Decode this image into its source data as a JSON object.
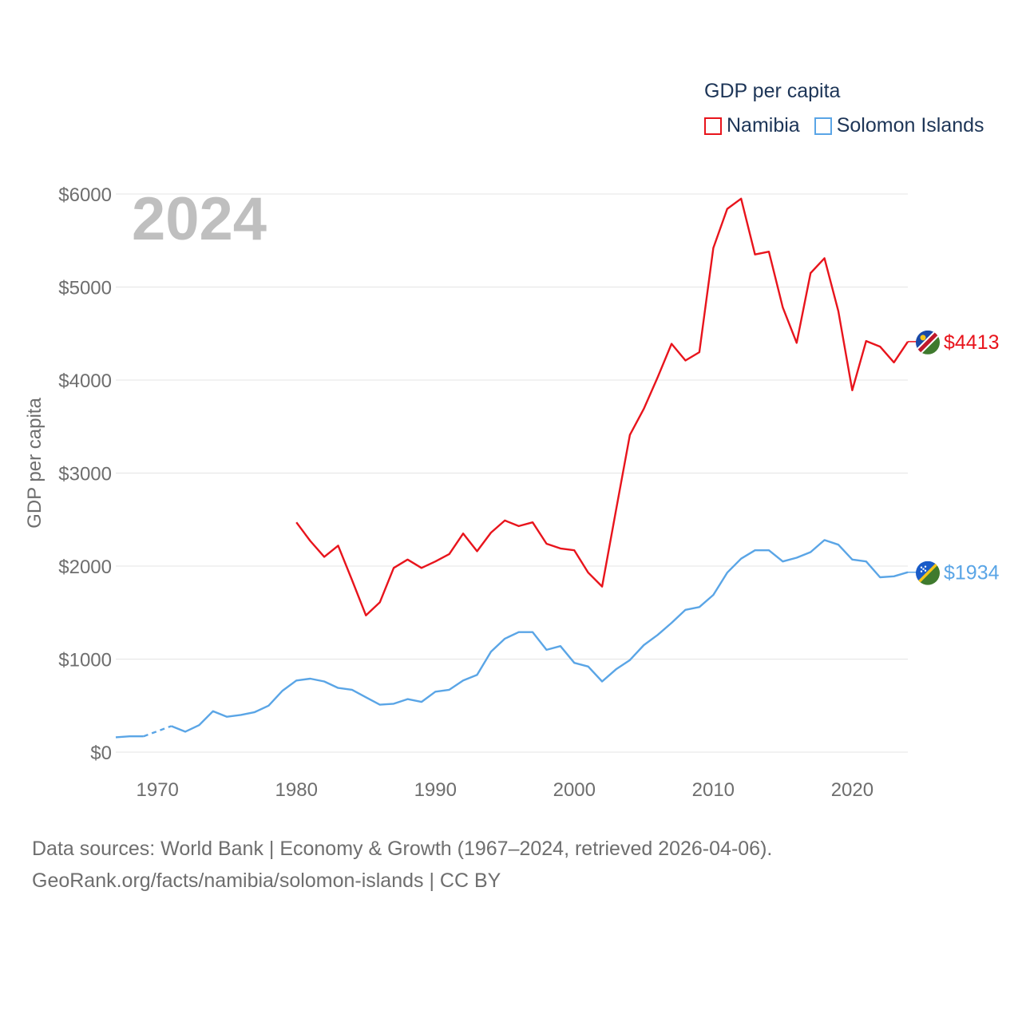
{
  "legend": {
    "title": "GDP per capita",
    "items": [
      {
        "label": "Namibia",
        "color": "#e8141c"
      },
      {
        "label": "Solomon Islands",
        "color": "#5aa5e6"
      }
    ]
  },
  "footer": {
    "line1": "Data sources: World Bank | Economy & Growth (1967–2024, retrieved 2026-04-06).",
    "line2": "GeoRank.org/facts/namibia/solomon-islands | CC BY"
  },
  "flags": {
    "namibia": "namibia-flag-icon",
    "solomon": "solomon-islands-flag-icon"
  },
  "chart_data": {
    "type": "line",
    "title": "",
    "year_label": "2024",
    "ylabel": "GDP per capita",
    "xlabel": "",
    "xlim": [
      1967,
      2024
    ],
    "ylim": [
      0,
      6000
    ],
    "x_ticks": [
      1970,
      1980,
      1990,
      2000,
      2010,
      2020
    ],
    "y_ticks": [
      0,
      1000,
      2000,
      3000,
      4000,
      5000,
      6000
    ],
    "y_tick_labels": [
      "$0",
      "$1000",
      "$2000",
      "$3000",
      "$4000",
      "$5000",
      "$6000"
    ],
    "grid": true,
    "series": [
      {
        "name": "Namibia",
        "color": "#e8141c",
        "end_label": "$4413",
        "points": [
          [
            1980,
            2470
          ],
          [
            1981,
            2270
          ],
          [
            1982,
            2100
          ],
          [
            1983,
            2220
          ],
          [
            1984,
            1850
          ],
          [
            1985,
            1470
          ],
          [
            1986,
            1610
          ],
          [
            1987,
            1980
          ],
          [
            1988,
            2070
          ],
          [
            1989,
            1980
          ],
          [
            1990,
            2050
          ],
          [
            1991,
            2130
          ],
          [
            1992,
            2350
          ],
          [
            1993,
            2160
          ],
          [
            1994,
            2360
          ],
          [
            1995,
            2490
          ],
          [
            1996,
            2430
          ],
          [
            1997,
            2470
          ],
          [
            1998,
            2240
          ],
          [
            1999,
            2190
          ],
          [
            2000,
            2170
          ],
          [
            2001,
            1930
          ],
          [
            2002,
            1780
          ],
          [
            2003,
            2600
          ],
          [
            2004,
            3410
          ],
          [
            2005,
            3690
          ],
          [
            2006,
            4030
          ],
          [
            2007,
            4390
          ],
          [
            2008,
            4210
          ],
          [
            2009,
            4300
          ],
          [
            2010,
            5420
          ],
          [
            2011,
            5840
          ],
          [
            2012,
            5950
          ],
          [
            2013,
            5350
          ],
          [
            2014,
            5380
          ],
          [
            2015,
            4780
          ],
          [
            2016,
            4400
          ],
          [
            2017,
            5150
          ],
          [
            2018,
            5310
          ],
          [
            2019,
            4740
          ],
          [
            2020,
            3890
          ],
          [
            2021,
            4420
          ],
          [
            2022,
            4360
          ],
          [
            2023,
            4190
          ],
          [
            2024,
            4413
          ]
        ]
      },
      {
        "name": "Solomon Islands",
        "color": "#5aa5e6",
        "end_label": "$1934",
        "points": [
          [
            1967,
            160
          ],
          [
            1968,
            170
          ],
          [
            1969,
            170
          ],
          [
            1971,
            280
          ],
          [
            1972,
            220
          ],
          [
            1973,
            290
          ],
          [
            1974,
            440
          ],
          [
            1975,
            380
          ],
          [
            1976,
            400
          ],
          [
            1977,
            430
          ],
          [
            1978,
            500
          ],
          [
            1979,
            660
          ],
          [
            1980,
            770
          ],
          [
            1981,
            790
          ],
          [
            1982,
            760
          ],
          [
            1983,
            690
          ],
          [
            1984,
            670
          ],
          [
            1985,
            590
          ],
          [
            1986,
            510
          ],
          [
            1987,
            520
          ],
          [
            1988,
            570
          ],
          [
            1989,
            540
          ],
          [
            1990,
            650
          ],
          [
            1991,
            670
          ],
          [
            1992,
            770
          ],
          [
            1993,
            830
          ],
          [
            1994,
            1080
          ],
          [
            1995,
            1220
          ],
          [
            1996,
            1290
          ],
          [
            1997,
            1290
          ],
          [
            1998,
            1100
          ],
          [
            1999,
            1140
          ],
          [
            2000,
            960
          ],
          [
            2001,
            920
          ],
          [
            2002,
            760
          ],
          [
            2003,
            890
          ],
          [
            2004,
            990
          ],
          [
            2005,
            1150
          ],
          [
            2006,
            1260
          ],
          [
            2007,
            1390
          ],
          [
            2008,
            1530
          ],
          [
            2009,
            1560
          ],
          [
            2010,
            1690
          ],
          [
            2011,
            1930
          ],
          [
            2012,
            2080
          ],
          [
            2013,
            2170
          ],
          [
            2014,
            2170
          ],
          [
            2015,
            2050
          ],
          [
            2016,
            2090
          ],
          [
            2017,
            2150
          ],
          [
            2018,
            2280
          ],
          [
            2019,
            2230
          ],
          [
            2020,
            2070
          ],
          [
            2021,
            2050
          ],
          [
            2022,
            1880
          ],
          [
            2023,
            1890
          ],
          [
            2024,
            1934
          ]
        ],
        "gap_after": 1969
      }
    ]
  }
}
